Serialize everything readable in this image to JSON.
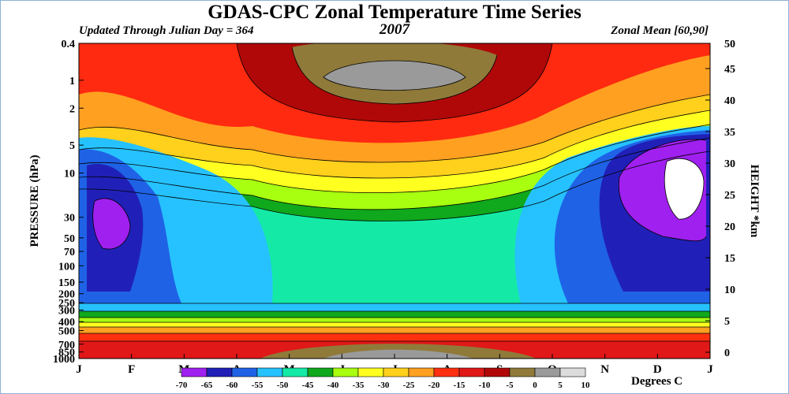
{
  "chart_data": {
    "type": "heatmap",
    "title": "GDAS-CPC Zonal Temperature Time Series",
    "subtitle_left": "Updated Through Julian Day = 364",
    "subtitle_center": "2007",
    "subtitle_right": "Zonal Mean [60,90]",
    "ylabel_left": "PRESSURE (hPa)",
    "ylabel_right": "HEIGHT *km",
    "colorbar_label": "Degrees C",
    "x_ticks": [
      "J",
      "F",
      "M",
      "A",
      "M",
      "J",
      "J",
      "A",
      "S",
      "O",
      "N",
      "D",
      "J"
    ],
    "pressure_ticks": [
      "0.4",
      "1",
      "2",
      "5",
      "10",
      "30",
      "50",
      "70",
      "100",
      "150",
      "200",
      "250",
      "300",
      "400",
      "500",
      "700",
      "850",
      "1000"
    ],
    "height_ticks": [
      "50",
      "45",
      "40",
      "35",
      "30",
      "25",
      "20",
      "15",
      "10",
      "5",
      "0"
    ],
    "colorbar_levels": [
      "-70",
      "-65",
      "-60",
      "-55",
      "-50",
      "-45",
      "-40",
      "-35",
      "-30",
      "-25",
      "-20",
      "-15",
      "-10",
      "-5",
      "0",
      "5",
      "10"
    ],
    "colorbar_colors": [
      "#a020f0",
      "#2020b8",
      "#1f62e6",
      "#26c2ff",
      "#14eaa6",
      "#10a81c",
      "#a8ff10",
      "#ffff20",
      "#ffd01c",
      "#ffa020",
      "#ff3010",
      "#e01818",
      "#b00808",
      "#8f7a3a",
      "#9a9a9a",
      "#dcdcdc"
    ],
    "zones": [
      {
        "name": "upper-stratosphere-max",
        "level": "-5 to 0",
        "fill": "#8f7a3a"
      },
      {
        "name": "stratopause-core",
        "level": "0 to 5",
        "fill": "#9a9a9a"
      },
      {
        "name": "summer-lower-strat",
        "level": "-50 to -45",
        "fill": "#14eaa6"
      },
      {
        "name": "spring-vortex",
        "level": "-65 to -60",
        "fill": "#2020b8"
      },
      {
        "name": "winter-vortex-cold",
        "level": "-70 to -65",
        "fill": "#a020f0"
      },
      {
        "name": "winter-vortex-coldest",
        "level": "below -70",
        "fill": "#ffffff"
      },
      {
        "name": "surface-warm",
        "level": "0 to 5",
        "fill": "#9a9a9a"
      }
    ]
  }
}
